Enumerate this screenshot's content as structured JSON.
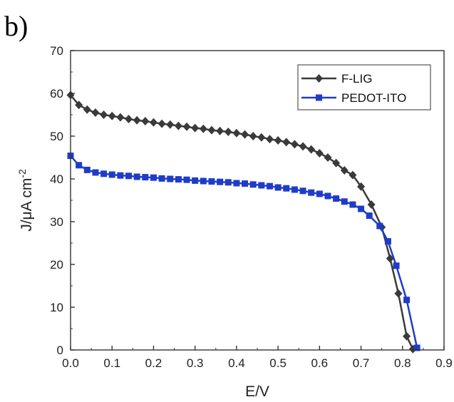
{
  "panel_label": "b)",
  "chart_data": {
    "type": "line",
    "title": "",
    "xlabel": "E/V",
    "ylabel_main": "J/μA cm",
    "ylabel_sup": "-2",
    "xlim": [
      0.0,
      0.9
    ],
    "ylim": [
      0,
      70
    ],
    "x_ticks": [
      0.0,
      0.1,
      0.2,
      0.3,
      0.4,
      0.5,
      0.6,
      0.7,
      0.8,
      0.9
    ],
    "x_tick_labels": [
      "0.0",
      "0.1",
      "0.2",
      "0.3",
      "0.4",
      "0.5",
      "0.6",
      "0.7",
      "0.8",
      "0.9"
    ],
    "y_ticks": [
      0,
      10,
      20,
      30,
      40,
      50,
      60,
      70
    ],
    "y_tick_labels": [
      "0",
      "10",
      "20",
      "30",
      "40",
      "50",
      "60",
      "70"
    ],
    "grid": false,
    "legend_position": "top-right",
    "series": [
      {
        "name": "F-LIG",
        "color": "#3a3a3a",
        "marker": "diamond",
        "x": [
          0.0,
          0.02,
          0.04,
          0.06,
          0.08,
          0.1,
          0.12,
          0.14,
          0.16,
          0.18,
          0.2,
          0.22,
          0.24,
          0.26,
          0.28,
          0.3,
          0.32,
          0.34,
          0.36,
          0.38,
          0.4,
          0.42,
          0.44,
          0.46,
          0.48,
          0.5,
          0.52,
          0.54,
          0.56,
          0.58,
          0.6,
          0.62,
          0.64,
          0.66,
          0.68,
          0.7,
          0.725,
          0.75,
          0.77,
          0.79,
          0.81,
          0.825
        ],
        "y": [
          59.6,
          57.3,
          56.2,
          55.5,
          55.0,
          54.7,
          54.4,
          54.0,
          53.7,
          53.5,
          53.2,
          52.9,
          52.7,
          52.4,
          52.2,
          51.9,
          51.7,
          51.4,
          51.2,
          51.0,
          50.7,
          50.4,
          50.0,
          49.7,
          49.3,
          49.0,
          48.6,
          48.1,
          47.6,
          46.9,
          46.0,
          45.0,
          43.7,
          42.0,
          40.9,
          38.2,
          34.0,
          28.7,
          21.4,
          13.2,
          3.2,
          0.2
        ]
      },
      {
        "name": "PEDOT-ITO",
        "color": "#1f3cc8",
        "marker": "square",
        "x": [
          0.0,
          0.02,
          0.04,
          0.06,
          0.08,
          0.1,
          0.12,
          0.14,
          0.16,
          0.18,
          0.2,
          0.22,
          0.24,
          0.26,
          0.28,
          0.3,
          0.32,
          0.34,
          0.36,
          0.38,
          0.4,
          0.42,
          0.44,
          0.46,
          0.48,
          0.5,
          0.52,
          0.54,
          0.56,
          0.58,
          0.6,
          0.62,
          0.64,
          0.66,
          0.68,
          0.7,
          0.72,
          0.745,
          0.765,
          0.785,
          0.81,
          0.835
        ],
        "y": [
          45.4,
          43.2,
          42.1,
          41.5,
          41.2,
          41.0,
          40.8,
          40.7,
          40.5,
          40.4,
          40.3,
          40.1,
          40.0,
          39.9,
          39.8,
          39.6,
          39.5,
          39.4,
          39.3,
          39.2,
          39.0,
          38.9,
          38.7,
          38.5,
          38.3,
          38.0,
          37.8,
          37.5,
          37.2,
          36.8,
          36.5,
          36.0,
          35.4,
          34.7,
          34.0,
          33.0,
          31.4,
          29.0,
          25.4,
          19.7,
          11.7,
          0.5
        ]
      }
    ]
  }
}
